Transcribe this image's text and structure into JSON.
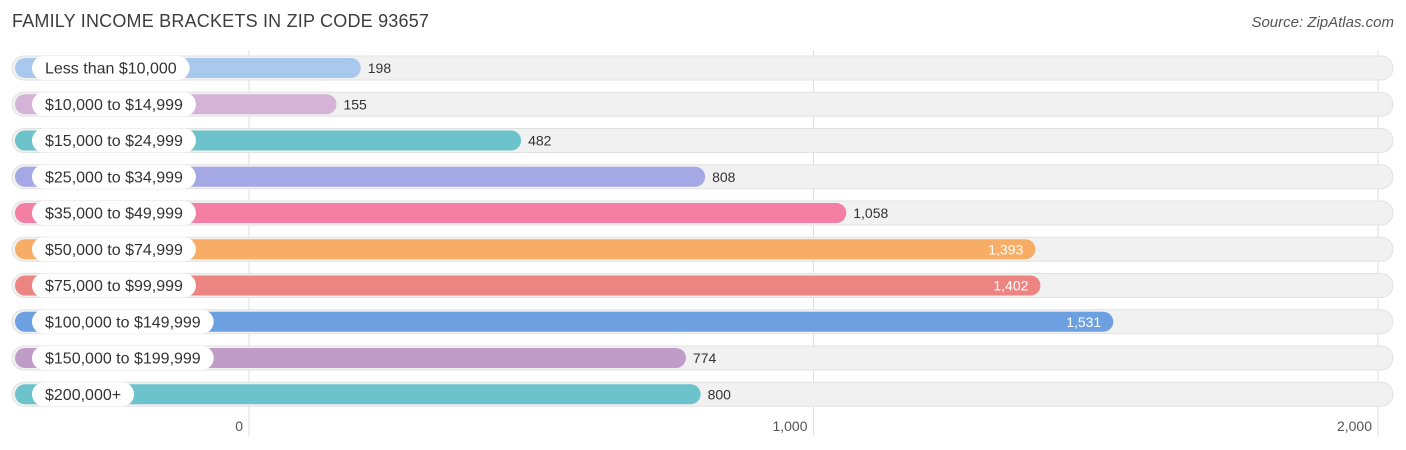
{
  "chart_data": {
    "type": "bar",
    "orientation": "horizontal",
    "title": "FAMILY INCOME BRACKETS IN ZIP CODE 93657",
    "source": "Source: ZipAtlas.com",
    "xlabel": "",
    "ylabel": "",
    "xlim": [
      0,
      2000
    ],
    "xticks": [
      0,
      1000,
      2000
    ],
    "xtick_labels": [
      "0",
      "1,000",
      "2,000"
    ],
    "grid": true,
    "legend": "none",
    "categories": [
      "Less than $10,000",
      "$10,000 to $14,999",
      "$15,000 to $24,999",
      "$25,000 to $34,999",
      "$35,000 to $49,999",
      "$50,000 to $74,999",
      "$75,000 to $99,999",
      "$100,000 to $149,999",
      "$150,000 to $199,999",
      "$200,000+"
    ],
    "values": [
      198,
      155,
      482,
      808,
      1058,
      1393,
      1402,
      1531,
      774,
      800
    ],
    "value_labels": [
      "198",
      "155",
      "482",
      "808",
      "1,058",
      "1,393",
      "1,402",
      "1,531",
      "774",
      "800"
    ],
    "colors": [
      "#a8c8ee",
      "#d4b3d6",
      "#6cc3cb",
      "#a4a8e4",
      "#f47ea4",
      "#f8ad66",
      "#ec8582",
      "#6ca0e0",
      "#c09dc8",
      "#6cc3cb"
    ]
  }
}
